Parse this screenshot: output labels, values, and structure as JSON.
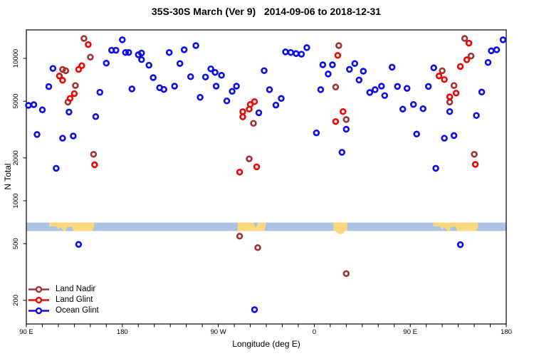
{
  "chart_data": {
    "type": "scatter",
    "title": "35S-30S March (Ver 9)   2014-09-06 to 2018-12-31",
    "xlabel": "Longitude (deg E)",
    "ylabel": "N Total",
    "x_axis": {
      "range": [
        90,
        540
      ],
      "minor_tick_step": 15,
      "ticks": [
        {
          "value": 90,
          "label": "90 E"
        },
        {
          "value": 180,
          "label": "180"
        },
        {
          "value": 270,
          "label": "90 W"
        },
        {
          "value": 360,
          "label": "0"
        },
        {
          "value": 450,
          "label": "90 E"
        },
        {
          "value": 540,
          "label": "180"
        }
      ]
    },
    "y_axis": {
      "scale": "log10",
      "range": [
        150,
        15000
      ],
      "ticks": [
        {
          "value": 10000,
          "label": "10000"
        },
        {
          "value": 5000,
          "label": "5000"
        },
        {
          "value": 2000,
          "label": "2000"
        },
        {
          "value": 1000,
          "label": "1000"
        },
        {
          "value": 500,
          "label": "500"
        },
        {
          "value": 200,
          "label": "200"
        }
      ]
    },
    "legend_position": "bottom-left",
    "series": [
      {
        "name": "Land Nadir",
        "color": "#9E3434",
        "marker": "open-circle",
        "points": [
          [
            144,
            13800
          ],
          [
            150,
            10200
          ],
          [
            124,
            8370
          ],
          [
            127,
            8180
          ],
          [
            136,
            6450
          ],
          [
            129,
            4930
          ],
          [
            153,
            2120
          ],
          [
            303,
            3500
          ],
          [
            299,
            1970
          ],
          [
            383,
            12300
          ],
          [
            380,
            6290
          ],
          [
            390,
            3720
          ],
          [
            501,
            13800
          ],
          [
            507,
            10400
          ],
          [
            480,
            8180
          ],
          [
            491,
            6450
          ],
          [
            487,
            4930
          ],
          [
            510,
            2120
          ],
          [
            290,
            564
          ],
          [
            307,
            469
          ],
          [
            390,
            308
          ]
        ]
      },
      {
        "name": "Land Glint",
        "color": "#EE0606",
        "marker": "open-circle",
        "points": [
          [
            148,
            12500
          ],
          [
            142,
            8880
          ],
          [
            139,
            8370
          ],
          [
            121,
            7520
          ],
          [
            124,
            7020
          ],
          [
            135,
            5650
          ],
          [
            131,
            5230
          ],
          [
            154,
            1790
          ],
          [
            304,
            4970
          ],
          [
            300,
            4740
          ],
          [
            299,
            4400
          ],
          [
            293,
            4220
          ],
          [
            293,
            3880
          ],
          [
            290,
            1590
          ],
          [
            306,
            1730
          ],
          [
            382,
            10500
          ],
          [
            387,
            4230
          ],
          [
            380,
            3600
          ],
          [
            505,
            12800
          ],
          [
            503,
            9780
          ],
          [
            497,
            8770
          ],
          [
            477,
            7520
          ],
          [
            482,
            7100
          ],
          [
            493,
            5700
          ],
          [
            487,
            5370
          ],
          [
            511,
            1800
          ]
        ]
      },
      {
        "name": "Ocean Glint",
        "color": "#0D0DEE",
        "marker": "open-circle",
        "points": [
          [
            115,
            8500
          ],
          [
            111,
            6340
          ],
          [
            97,
            4730
          ],
          [
            105,
            4350
          ],
          [
            130,
            4200
          ],
          [
            100,
            2920
          ],
          [
            124,
            2750
          ],
          [
            134,
            2850
          ],
          [
            118,
            1690
          ],
          [
            92,
            4680
          ],
          [
            165,
            9260
          ],
          [
            170,
            11400
          ],
          [
            174,
            11400
          ],
          [
            180,
            13500
          ],
          [
            183,
            11000
          ],
          [
            186,
            11000
          ],
          [
            195,
            10600
          ],
          [
            198,
            10900
          ],
          [
            198,
            9800
          ],
          [
            159,
            5780
          ],
          [
            189,
            6100
          ],
          [
            155,
            3900
          ],
          [
            224,
            11000
          ],
          [
            238,
            11500
          ],
          [
            249,
            12300
          ],
          [
            234,
            9200
          ],
          [
            205,
            8950
          ],
          [
            209,
            7330
          ],
          [
            215,
            6220
          ],
          [
            219,
            6050
          ],
          [
            229,
            6380
          ],
          [
            244,
            7440
          ],
          [
            258,
            7400
          ],
          [
            263,
            8440
          ],
          [
            267,
            7970
          ],
          [
            273,
            7600
          ],
          [
            268,
            6380
          ],
          [
            283,
            5870
          ],
          [
            287,
            6380
          ],
          [
            253,
            5330
          ],
          [
            278,
            5030
          ],
          [
            313,
            8200
          ],
          [
            308,
            4150
          ],
          [
            318,
            6030
          ],
          [
            333,
            11100
          ],
          [
            338,
            11000
          ],
          [
            343,
            10800
          ],
          [
            348,
            10700
          ],
          [
            353,
            11900
          ],
          [
            368,
            9020
          ],
          [
            377,
            9020
          ],
          [
            373,
            7770
          ],
          [
            393,
            8380
          ],
          [
            398,
            9200
          ],
          [
            406,
            8130
          ],
          [
            402,
            7050
          ],
          [
            412,
            5760
          ],
          [
            417,
            6030
          ],
          [
            423,
            6380
          ],
          [
            426,
            5480
          ],
          [
            329,
            5230
          ],
          [
            324,
            4700
          ],
          [
            366,
            6030
          ],
          [
            390,
            3180
          ],
          [
            362,
            3000
          ],
          [
            386,
            2190
          ],
          [
            433,
            8670
          ],
          [
            438,
            6350
          ],
          [
            447,
            6160
          ],
          [
            453,
            4750
          ],
          [
            443,
            4400
          ],
          [
            462,
            4430
          ],
          [
            467,
            6350
          ],
          [
            472,
            8580
          ],
          [
            487,
            4230
          ],
          [
            456,
            2940
          ],
          [
            482,
            2750
          ],
          [
            491,
            2870
          ],
          [
            512,
            3970
          ],
          [
            517,
            5800
          ],
          [
            523,
            9360
          ],
          [
            526,
            11300
          ],
          [
            531,
            11500
          ],
          [
            537,
            13500
          ],
          [
            474,
            1690
          ],
          [
            139,
            494
          ],
          [
            497,
            492
          ],
          [
            304,
            172
          ]
        ]
      }
    ]
  },
  "map_band": {
    "ocean_color": "#ADC3E3",
    "land_color": "#FBD87E",
    "land_patches": [
      {
        "shape": "australia",
        "lon": [
          111.5,
          153.5
        ]
      },
      {
        "shape": "south-america",
        "lon": [
          288,
          315
        ]
      },
      {
        "shape": "africa",
        "lon": [
          378,
          391
        ]
      },
      {
        "shape": "australia",
        "lon": [
          471.5,
          513.5
        ]
      }
    ]
  },
  "colors": {
    "axis": "#000000",
    "background": "#ffffff"
  }
}
